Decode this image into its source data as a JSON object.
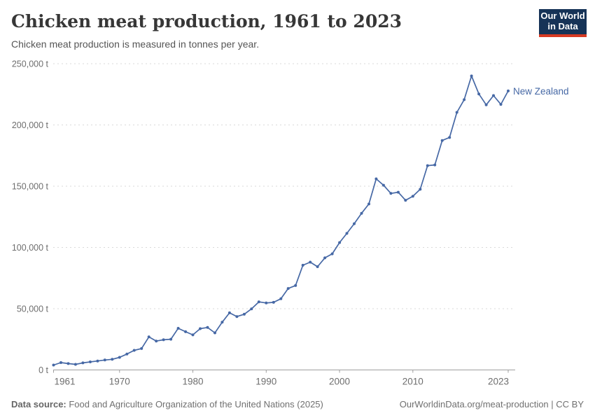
{
  "header": {
    "title": "Chicken meat production, 1961 to 2023",
    "subtitle": "Chicken meat production is measured in tonnes per year."
  },
  "logo": {
    "line1": "Our World",
    "line2": "in Data",
    "bg_color": "#163357",
    "accent_color": "#d73a23"
  },
  "chart_data": {
    "type": "line",
    "title": "Chicken meat production, 1961 to 2023",
    "unit": "tonnes",
    "grid": true,
    "legend_position": "end-of-line",
    "line_color": "#4668a5",
    "ylim": [
      0,
      250000
    ],
    "y_ticks": [
      0,
      50000,
      100000,
      150000,
      200000,
      250000
    ],
    "y_tick_labels": [
      "0 t",
      "50,000 t",
      "100,000 t",
      "150,000 t",
      "200,000 t",
      "250,000 t"
    ],
    "x_ticks": [
      1961,
      1970,
      1980,
      1990,
      2000,
      2010,
      2023
    ],
    "x": [
      1961,
      1962,
      1963,
      1964,
      1965,
      1966,
      1967,
      1968,
      1969,
      1970,
      1971,
      1972,
      1973,
      1974,
      1975,
      1976,
      1977,
      1978,
      1979,
      1980,
      1981,
      1982,
      1983,
      1984,
      1985,
      1986,
      1987,
      1988,
      1989,
      1990,
      1991,
      1992,
      1993,
      1994,
      1995,
      1996,
      1997,
      1998,
      1999,
      2000,
      2001,
      2002,
      2003,
      2004,
      2005,
      2006,
      2007,
      2008,
      2009,
      2010,
      2011,
      2012,
      2013,
      2014,
      2015,
      2016,
      2017,
      2018,
      2019,
      2020,
      2021,
      2022,
      2023
    ],
    "series": [
      {
        "name": "New Zealand",
        "values": [
          4000,
          6000,
          5200,
          4600,
          5800,
          6600,
          7300,
          8100,
          8700,
          10300,
          13000,
          16000,
          17500,
          27000,
          23600,
          24600,
          25100,
          34000,
          31200,
          28600,
          33700,
          34700,
          30300,
          39000,
          46600,
          43600,
          45500,
          49900,
          55600,
          54700,
          55200,
          58100,
          66500,
          68900,
          85500,
          88000,
          84300,
          91500,
          94800,
          104000,
          111500,
          119400,
          127900,
          135500,
          156000,
          150800,
          144100,
          145100,
          138500,
          141800,
          147500,
          166800,
          167400,
          187300,
          189800,
          210300,
          220600,
          240000,
          225300,
          216400,
          224000,
          216800,
          227800
        ]
      }
    ]
  },
  "footer": {
    "source_label": "Data source:",
    "source_text": " Food and Agriculture Organization of the United Nations (2025)",
    "link_text": "OurWorldinData.org/meat-production | CC BY"
  }
}
